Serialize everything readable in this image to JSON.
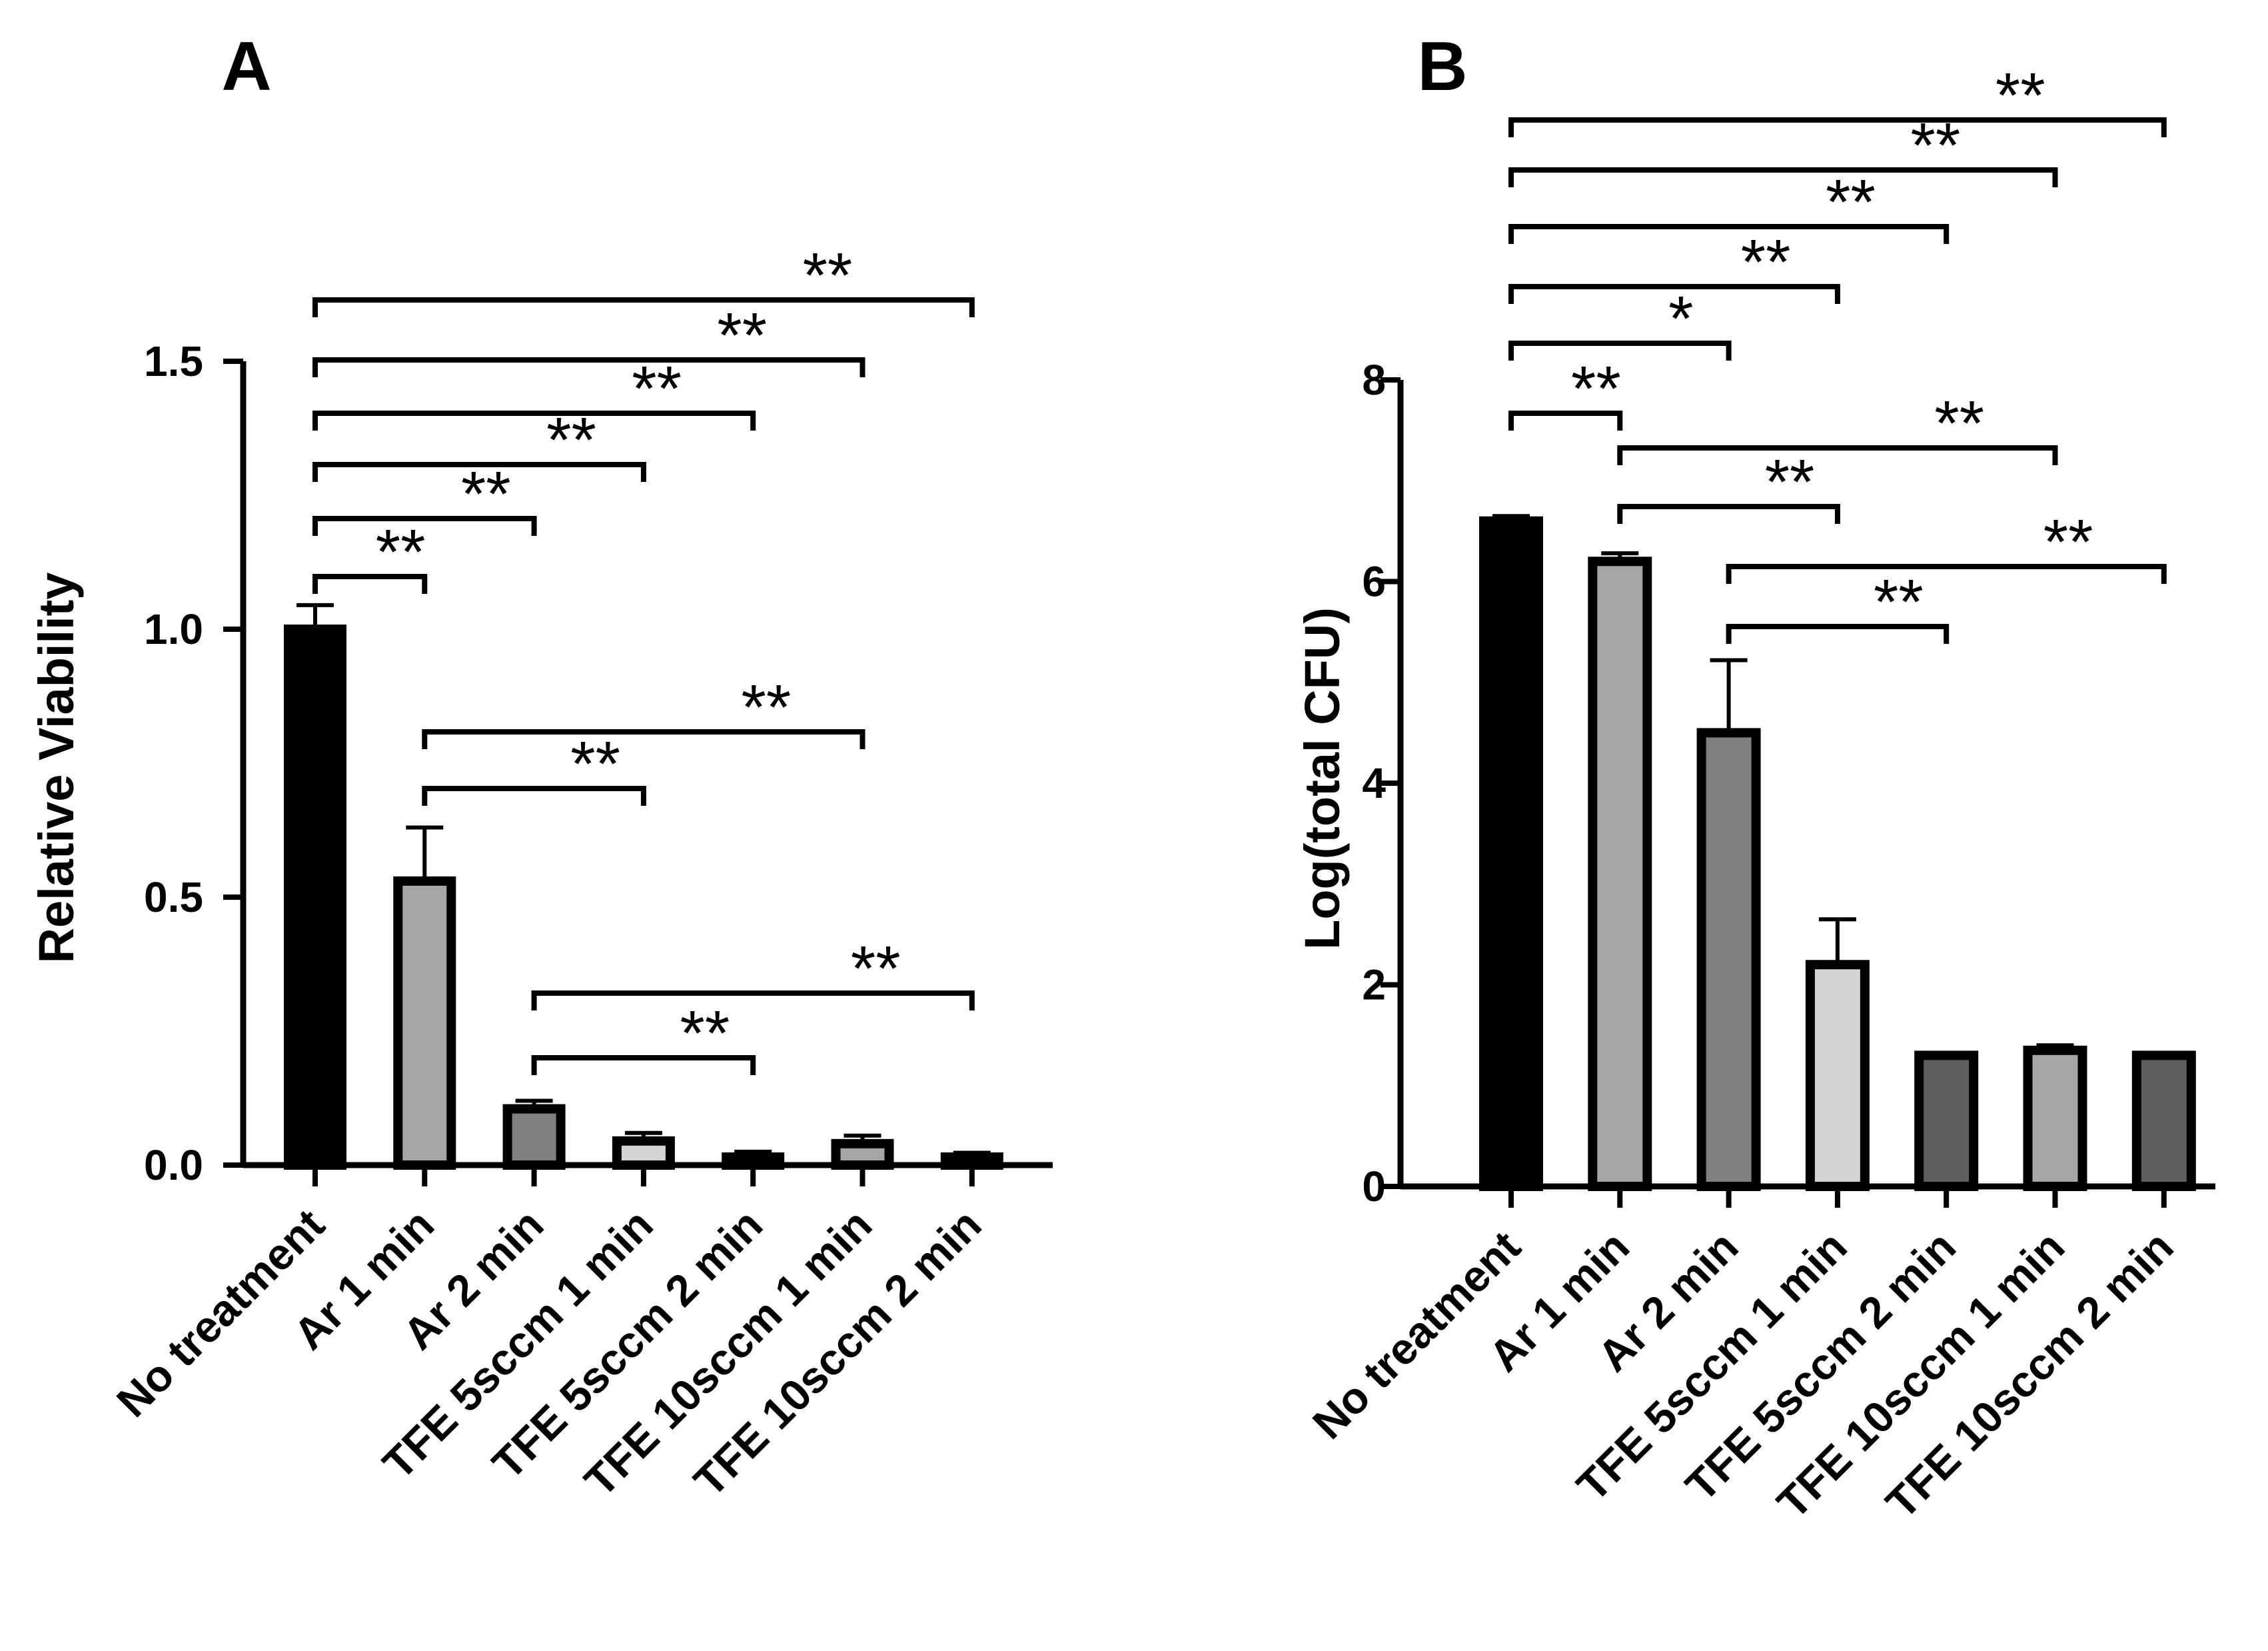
{
  "chart_data": [
    {
      "panel": "A",
      "type": "bar",
      "ylabel": "Relative Viability",
      "xlabel": "",
      "ylim": [
        0,
        1.5
      ],
      "yticks": [
        "0.0",
        "0.5",
        "1.0",
        "1.5"
      ],
      "categories": [
        "No treatment",
        "Ar 1 min",
        "Ar 2 min",
        "TFE 5sccm 1 min",
        "TFE 5sccm 2 min",
        "TFE 10sccm 1 min",
        "TFE 10sccm 2 min"
      ],
      "values": [
        1.0,
        0.53,
        0.105,
        0.045,
        0.015,
        0.04,
        0.015
      ],
      "errors": [
        0.045,
        0.1,
        0.015,
        0.015,
        0.01,
        0.015,
        0.008
      ],
      "colors": [
        "#000000",
        "#a6a6a8",
        "#808080",
        "#d4d4d4",
        "#5e5e5e",
        "#a6a6a8",
        "#5e5e5e"
      ],
      "significance": [
        {
          "from": 0,
          "to": 1,
          "label": "**"
        },
        {
          "from": 0,
          "to": 2,
          "label": "**"
        },
        {
          "from": 0,
          "to": 3,
          "label": "**"
        },
        {
          "from": 0,
          "to": 4,
          "label": "**"
        },
        {
          "from": 0,
          "to": 5,
          "label": "**"
        },
        {
          "from": 0,
          "to": 6,
          "label": "**"
        },
        {
          "from": 1,
          "to": 3,
          "label": "**"
        },
        {
          "from": 1,
          "to": 5,
          "label": "**"
        },
        {
          "from": 2,
          "to": 4,
          "label": "**"
        },
        {
          "from": 2,
          "to": 6,
          "label": "**"
        }
      ]
    },
    {
      "panel": "B",
      "type": "bar",
      "ylabel": "Log(total CFU)",
      "xlabel": "",
      "ylim": [
        0,
        8
      ],
      "yticks": [
        "0",
        "2",
        "4",
        "6",
        "8"
      ],
      "categories": [
        "No treatment",
        "Ar 1 min",
        "Ar 2 min",
        "TFE 5sccm 1 min",
        "TFE 5sccm 2 min",
        "TFE 10sccm 1 min",
        "TFE 10sccm 2 min"
      ],
      "values": [
        6.6,
        6.2,
        4.5,
        2.2,
        1.3,
        1.35,
        1.3
      ],
      "errors": [
        0.05,
        0.08,
        0.72,
        0.45,
        0.0,
        0.05,
        0.0
      ],
      "colors": [
        "#000000",
        "#a6a6a8",
        "#808080",
        "#d4d4d4",
        "#5e5e5e",
        "#a6a6a8",
        "#5e5e5e"
      ],
      "significance": [
        {
          "from": 0,
          "to": 1,
          "label": "**"
        },
        {
          "from": 0,
          "to": 2,
          "label": "*"
        },
        {
          "from": 0,
          "to": 3,
          "label": "**"
        },
        {
          "from": 0,
          "to": 4,
          "label": "**"
        },
        {
          "from": 0,
          "to": 5,
          "label": "**"
        },
        {
          "from": 0,
          "to": 6,
          "label": "**"
        },
        {
          "from": 1,
          "to": 3,
          "label": "**"
        },
        {
          "from": 1,
          "to": 5,
          "label": "**"
        },
        {
          "from": 2,
          "to": 4,
          "label": "**"
        },
        {
          "from": 2,
          "to": 6,
          "label": "**"
        }
      ]
    }
  ]
}
